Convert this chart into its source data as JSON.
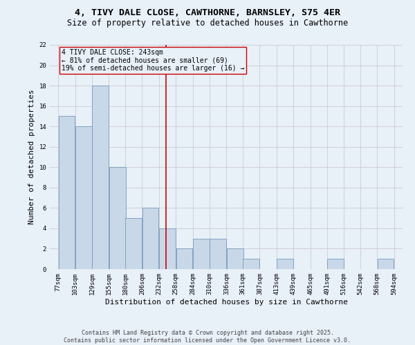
{
  "title_line1": "4, TIVY DALE CLOSE, CAWTHORNE, BARNSLEY, S75 4ER",
  "title_line2": "Size of property relative to detached houses in Cawthorne",
  "xlabel": "Distribution of detached houses by size in Cawthorne",
  "ylabel": "Number of detached properties",
  "bins": [
    77,
    103,
    129,
    155,
    180,
    206,
    232,
    258,
    284,
    310,
    336,
    361,
    387,
    413,
    439,
    465,
    491,
    516,
    542,
    568,
    594
  ],
  "counts": [
    15,
    14,
    18,
    10,
    5,
    6,
    4,
    2,
    3,
    3,
    2,
    1,
    0,
    1,
    0,
    0,
    1,
    0,
    0,
    1
  ],
  "bar_color": "#c8d8e8",
  "bar_edge_color": "#7799bb",
  "grid_color": "#cccccc",
  "vline_x": 243,
  "vline_color": "#cc0000",
  "annotation_text": "4 TIVY DALE CLOSE: 243sqm\n← 81% of detached houses are smaller (69)\n19% of semi-detached houses are larger (16) →",
  "annotation_box_color": "#cc0000",
  "ylim": [
    0,
    22
  ],
  "yticks": [
    0,
    2,
    4,
    6,
    8,
    10,
    12,
    14,
    16,
    18,
    20,
    22
  ],
  "footer_line1": "Contains HM Land Registry data © Crown copyright and database right 2025.",
  "footer_line2": "Contains public sector information licensed under the Open Government Licence v3.0.",
  "bg_color": "#e8f0f8",
  "title_fontsize": 9.5,
  "subtitle_fontsize": 8.5,
  "axis_label_fontsize": 8,
  "tick_fontsize": 6.5,
  "annotation_fontsize": 7,
  "footer_fontsize": 6
}
